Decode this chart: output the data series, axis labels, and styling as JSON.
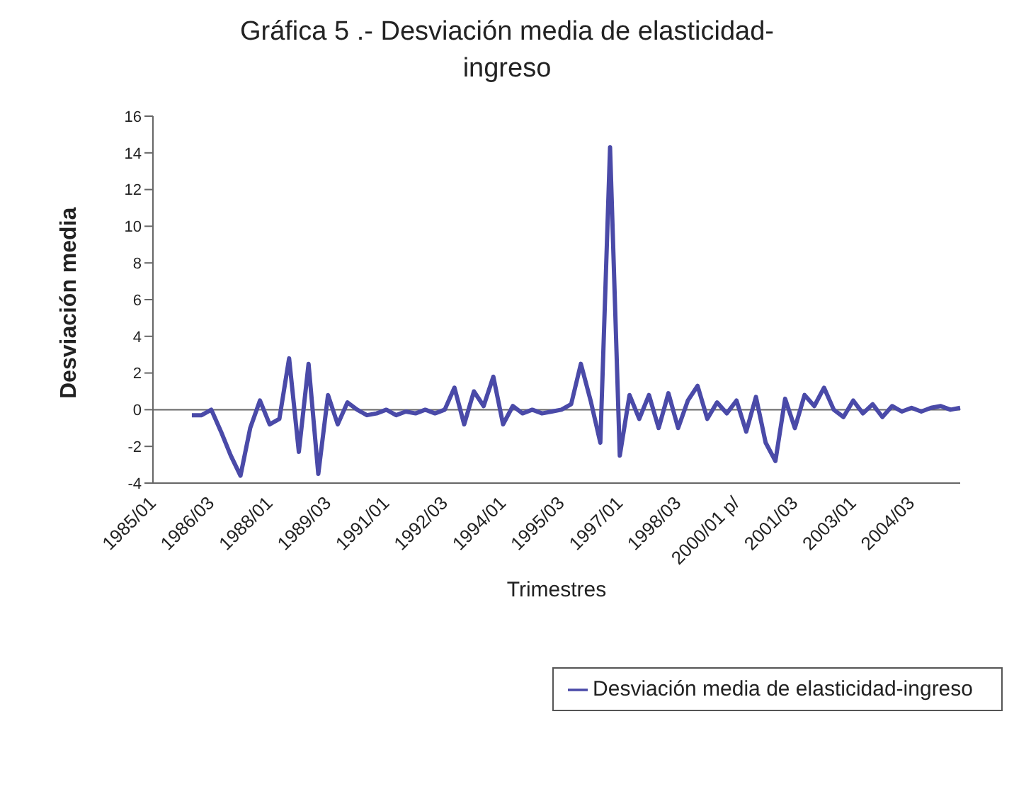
{
  "chart_data": {
    "type": "line",
    "title": "Gráfica 5 .- Desviación media de elasticidad-ingreso",
    "xlabel": "Trimestres",
    "ylabel": "Desviación media",
    "categories": [
      "1985/01",
      null,
      null,
      null,
      null,
      null,
      "1986/03",
      null,
      null,
      null,
      null,
      null,
      "1988/01",
      null,
      null,
      null,
      null,
      null,
      "1989/03",
      null,
      null,
      null,
      null,
      null,
      "1991/01",
      null,
      null,
      null,
      null,
      null,
      "1992/03",
      null,
      null,
      null,
      null,
      null,
      "1994/01",
      null,
      null,
      null,
      null,
      null,
      "1995/03",
      null,
      null,
      null,
      null,
      null,
      "1997/01",
      null,
      null,
      null,
      null,
      null,
      "1998/03",
      null,
      null,
      null,
      null,
      null,
      "2000/01 p/",
      null,
      null,
      null,
      null,
      null,
      "2001/03",
      null,
      null,
      null,
      null,
      null,
      "2003/01",
      null,
      null,
      null,
      null,
      null,
      "2004/03",
      null,
      null,
      null,
      null,
      null
    ],
    "series": [
      {
        "name": "Desviación media de elasticidad-ingreso",
        "color": "#4a4aa8",
        "values": [
          null,
          null,
          null,
          null,
          -0.3,
          -0.3,
          0,
          -1.2,
          -2.5,
          -3.6,
          -1,
          0.5,
          -0.8,
          -0.5,
          2.8,
          -2.3,
          2.5,
          -3.5,
          0.8,
          -0.8,
          0.4,
          0,
          -0.3,
          -0.2,
          0,
          -0.3,
          -0.1,
          -0.2,
          0,
          -0.2,
          0,
          1.2,
          -0.8,
          1,
          0.2,
          1.8,
          -0.8,
          0.2,
          -0.2,
          0,
          -0.2,
          -0.1,
          0,
          0.3,
          2.5,
          0.5,
          -1.8,
          14.3,
          -2.5,
          0.8,
          -0.5,
          0.8,
          -1,
          0.9,
          -1,
          0.5,
          1.3,
          -0.5,
          0.4,
          -0.2,
          0.5,
          -1.2,
          0.7,
          -1.8,
          -2.8,
          0.6,
          -1,
          0.8,
          0.2,
          1.2,
          0,
          -0.4,
          0.5,
          -0.2,
          0.3,
          -0.4,
          0.2,
          -0.1,
          0.1,
          -0.1,
          0.1,
          0.2,
          0,
          0.1
        ]
      }
    ],
    "ylim": [
      -4,
      16
    ],
    "yticks": [
      -4,
      -2,
      0,
      2,
      4,
      6,
      8,
      10,
      12,
      14,
      16
    ],
    "legend": "bottom right",
    "marker": "none",
    "line_style": "solid"
  }
}
